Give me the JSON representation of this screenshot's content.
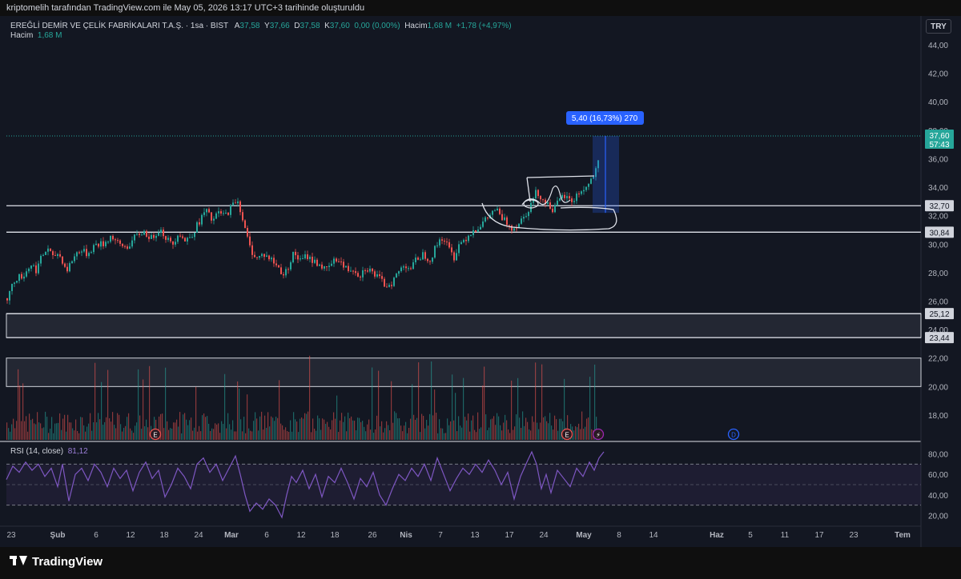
{
  "header": {
    "caption": "kriptomelih tarafından TradingView.com ile May 05, 2026 13:17 UTC+3 tarihinde oluşturuldu"
  },
  "legend": {
    "symbol": "EREĞLİ DEMİR VE ÇELİK FABRİKALARI T.A.Ş. · 1sa · BIST",
    "o_label": "A",
    "o_value": "37,58",
    "h_label": "Y",
    "h_value": "37,66",
    "l_label": "D",
    "l_value": "37,58",
    "c_label": "K",
    "c_value": "37,60",
    "change": "0,00 (0,00%)",
    "vol_label": "Hacim",
    "vol_value": "1,68 M",
    "vol_change": "+1,78 (+4,97%)"
  },
  "volume_legend": {
    "label": "Hacim",
    "value": "1,68 M"
  },
  "rsi_legend": {
    "label": "RSI (14, close)",
    "value": "81,12"
  },
  "currency_button": "TRY",
  "brand": "TradingView",
  "colors": {
    "up": "#26a69a",
    "down": "#ef5350",
    "rsi": "#7e57c2",
    "measure": "#2962ff",
    "background": "#131722"
  },
  "events": [
    "E",
    "E",
    "⚡",
    "D"
  ],
  "chart_data": {
    "type": "candlestick",
    "timeframe": "1sa",
    "price_axis": {
      "ticks": [
        "44,00",
        "42,00",
        "40,00",
        "38,00",
        "36,00",
        "34,00",
        "32,00",
        "30,00",
        "28,00",
        "26,00",
        "24,00",
        "22,00",
        "20,00",
        "18,00"
      ],
      "tick_values": [
        44,
        42,
        40,
        38,
        36,
        34,
        32,
        30,
        28,
        26,
        24,
        22,
        20,
        18
      ],
      "ylim": [
        16.2,
        44.9
      ]
    },
    "price_labels": [
      {
        "text": "37,60",
        "sub": "57:43",
        "value": 37.6,
        "kind": "last"
      },
      {
        "text": "32,70",
        "value": 32.7,
        "kind": "line"
      },
      {
        "text": "30,84",
        "value": 30.84,
        "kind": "line"
      },
      {
        "text": "25,12",
        "value": 25.12,
        "kind": "line"
      },
      {
        "text": "23,44",
        "value": 23.44,
        "kind": "line"
      }
    ],
    "zones": [
      {
        "from": 23.44,
        "to": 25.12
      },
      {
        "from": 20.0,
        "to": 22.0
      }
    ],
    "measure": {
      "label": "5,40 (16,73%) 270",
      "from": 32.2,
      "to": 37.6
    },
    "time_axis": [
      "23",
      "Şub",
      "6",
      "12",
      "18",
      "24",
      "Mar",
      "6",
      "12",
      "18",
      "26",
      "Nis",
      "7",
      "13",
      "17",
      "24",
      "May",
      "8",
      "14",
      "Haz",
      "5",
      "11",
      "17",
      "23",
      "Tem"
    ],
    "time_axis_bold": [
      "Şub",
      "Mar",
      "Nis",
      "May",
      "Haz",
      "Tem"
    ],
    "price_path": [
      [
        0,
        26.2
      ],
      [
        10,
        27.6
      ],
      [
        20,
        27.8
      ],
      [
        30,
        28.6
      ],
      [
        36,
        28.2
      ],
      [
        44,
        29.2
      ],
      [
        52,
        29.8
      ],
      [
        56,
        28.9
      ],
      [
        62,
        29.4
      ],
      [
        68,
        29.0
      ],
      [
        74,
        28.1
      ],
      [
        82,
        29.0
      ],
      [
        90,
        29.6
      ],
      [
        100,
        29.3
      ],
      [
        110,
        30.0
      ],
      [
        120,
        30.0
      ],
      [
        130,
        30.6
      ],
      [
        140,
        29.9
      ],
      [
        150,
        29.8
      ],
      [
        160,
        30.5
      ],
      [
        170,
        30.9
      ],
      [
        180,
        30.4
      ],
      [
        190,
        31.1
      ],
      [
        198,
        30.5
      ],
      [
        206,
        29.9
      ],
      [
        214,
        30.9
      ],
      [
        222,
        30.2
      ],
      [
        232,
        30.8
      ],
      [
        240,
        31.6
      ],
      [
        248,
        32.4
      ],
      [
        256,
        31.6
      ],
      [
        264,
        32.2
      ],
      [
        272,
        32.0
      ],
      [
        280,
        32.6
      ],
      [
        287,
        33.2
      ],
      [
        292,
        32.3
      ],
      [
        296,
        31.2
      ],
      [
        300,
        30.4
      ],
      [
        304,
        29.6
      ],
      [
        312,
        29.0
      ],
      [
        320,
        29.3
      ],
      [
        330,
        28.9
      ],
      [
        338,
        28.4
      ],
      [
        346,
        27.8
      ],
      [
        352,
        28.6
      ],
      [
        358,
        29.4
      ],
      [
        366,
        28.8
      ],
      [
        374,
        29.2
      ],
      [
        382,
        28.8
      ],
      [
        390,
        28.6
      ],
      [
        398,
        28.1
      ],
      [
        406,
        28.7
      ],
      [
        414,
        29.0
      ],
      [
        420,
        28.4
      ],
      [
        426,
        28.2
      ],
      [
        432,
        28.3
      ],
      [
        440,
        27.8
      ],
      [
        448,
        28.4
      ],
      [
        456,
        28.0
      ],
      [
        464,
        27.6
      ],
      [
        472,
        27.1
      ],
      [
        480,
        27.3
      ],
      [
        488,
        28.0
      ],
      [
        496,
        28.6
      ],
      [
        504,
        28.3
      ],
      [
        512,
        29.0
      ],
      [
        520,
        29.3
      ],
      [
        528,
        28.9
      ],
      [
        536,
        29.9
      ],
      [
        542,
        30.5
      ],
      [
        548,
        30.1
      ],
      [
        554,
        29.4
      ],
      [
        558,
        29.1
      ],
      [
        564,
        30.0
      ],
      [
        572,
        30.4
      ],
      [
        580,
        30.9
      ],
      [
        588,
        31.2
      ],
      [
        596,
        31.6
      ],
      [
        604,
        32.1
      ],
      [
        610,
        32.5
      ],
      [
        616,
        31.9
      ],
      [
        624,
        31.5
      ],
      [
        632,
        31.1
      ],
      [
        640,
        31.6
      ],
      [
        648,
        32.2
      ],
      [
        654,
        32.8
      ],
      [
        660,
        33.6
      ],
      [
        666,
        33.4
      ],
      [
        670,
        33.0
      ],
      [
        676,
        32.8
      ],
      [
        682,
        32.4
      ],
      [
        688,
        32.9
      ],
      [
        694,
        33.4
      ],
      [
        700,
        33.2
      ],
      [
        706,
        33.0
      ],
      [
        712,
        33.5
      ],
      [
        718,
        33.8
      ],
      [
        724,
        34.0
      ],
      [
        730,
        34.6
      ],
      [
        736,
        35.2
      ],
      [
        740,
        36.1
      ],
      [
        744,
        37.0
      ],
      [
        748,
        37.6
      ]
    ],
    "rsi": {
      "period": 14,
      "source": "close",
      "last": 81.12,
      "ticks": [
        "80,00",
        "60,00",
        "40,00",
        "20,00"
      ],
      "tick_values": [
        80,
        60,
        40,
        20
      ],
      "bands": {
        "upper": 70,
        "mid": 50,
        "lower": 30
      },
      "ylim": [
        11,
        89
      ],
      "series": [
        [
          0,
          55
        ],
        [
          8,
          68
        ],
        [
          16,
          62
        ],
        [
          24,
          72
        ],
        [
          32,
          64
        ],
        [
          40,
          70
        ],
        [
          48,
          58
        ],
        [
          56,
          66
        ],
        [
          64,
          48
        ],
        [
          70,
          70
        ],
        [
          78,
          34
        ],
        [
          86,
          60
        ],
        [
          94,
          66
        ],
        [
          102,
          54
        ],
        [
          110,
          70
        ],
        [
          118,
          62
        ],
        [
          126,
          48
        ],
        [
          134,
          66
        ],
        [
          142,
          56
        ],
        [
          150,
          64
        ],
        [
          158,
          44
        ],
        [
          166,
          62
        ],
        [
          174,
          72
        ],
        [
          182,
          56
        ],
        [
          190,
          64
        ],
        [
          198,
          38
        ],
        [
          206,
          50
        ],
        [
          214,
          66
        ],
        [
          222,
          58
        ],
        [
          230,
          46
        ],
        [
          238,
          70
        ],
        [
          246,
          76
        ],
        [
          254,
          62
        ],
        [
          262,
          70
        ],
        [
          270,
          54
        ],
        [
          278,
          66
        ],
        [
          286,
          78
        ],
        [
          292,
          60
        ],
        [
          298,
          40
        ],
        [
          304,
          24
        ],
        [
          312,
          32
        ],
        [
          320,
          26
        ],
        [
          328,
          36
        ],
        [
          336,
          30
        ],
        [
          344,
          18
        ],
        [
          350,
          40
        ],
        [
          356,
          58
        ],
        [
          362,
          52
        ],
        [
          370,
          64
        ],
        [
          378,
          46
        ],
        [
          386,
          60
        ],
        [
          394,
          38
        ],
        [
          402,
          58
        ],
        [
          410,
          52
        ],
        [
          418,
          66
        ],
        [
          426,
          52
        ],
        [
          434,
          36
        ],
        [
          442,
          56
        ],
        [
          450,
          48
        ],
        [
          458,
          62
        ],
        [
          466,
          40
        ],
        [
          474,
          30
        ],
        [
          482,
          46
        ],
        [
          490,
          60
        ],
        [
          498,
          54
        ],
        [
          506,
          66
        ],
        [
          514,
          58
        ],
        [
          522,
          70
        ],
        [
          530,
          54
        ],
        [
          538,
          76
        ],
        [
          546,
          60
        ],
        [
          554,
          44
        ],
        [
          562,
          56
        ],
        [
          570,
          66
        ],
        [
          578,
          60
        ],
        [
          586,
          70
        ],
        [
          594,
          62
        ],
        [
          602,
          74
        ],
        [
          610,
          64
        ],
        [
          618,
          50
        ],
        [
          626,
          62
        ],
        [
          634,
          36
        ],
        [
          642,
          58
        ],
        [
          650,
          72
        ],
        [
          656,
          82
        ],
        [
          662,
          70
        ],
        [
          668,
          46
        ],
        [
          674,
          60
        ],
        [
          680,
          42
        ],
        [
          688,
          64
        ],
        [
          696,
          56
        ],
        [
          704,
          48
        ],
        [
          712,
          66
        ],
        [
          720,
          58
        ],
        [
          728,
          72
        ],
        [
          734,
          64
        ],
        [
          740,
          76
        ],
        [
          746,
          82
        ]
      ]
    }
  }
}
